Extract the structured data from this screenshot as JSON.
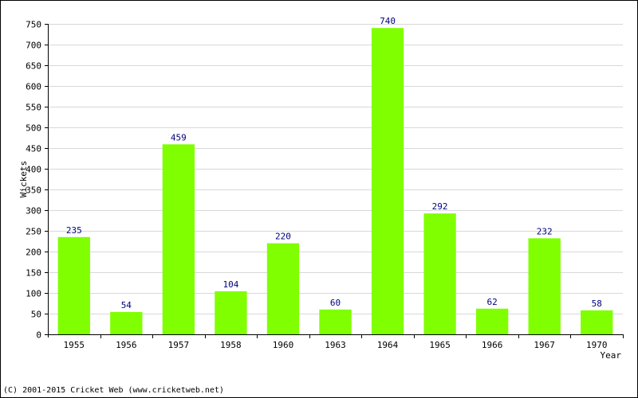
{
  "footer": {
    "credit": "(C) 2001-2015 Cricket Web (www.cricketweb.net)"
  },
  "chart_data": {
    "type": "bar",
    "title": "",
    "xlabel": "Year",
    "ylabel": "Wickets",
    "categories": [
      "1955",
      "1956",
      "1957",
      "1958",
      "1960",
      "1963",
      "1964",
      "1965",
      "1966",
      "1967",
      "1970"
    ],
    "values": [
      235,
      54,
      459,
      104,
      220,
      60,
      740,
      292,
      62,
      232,
      58
    ],
    "ylim": [
      0,
      750
    ],
    "ytick_step": 50,
    "grid": true,
    "data_labels": true,
    "colors": {
      "bar": "#80ff00",
      "data_label": "#000080",
      "grid": "#d8d8d8",
      "axis": "#000000"
    }
  }
}
